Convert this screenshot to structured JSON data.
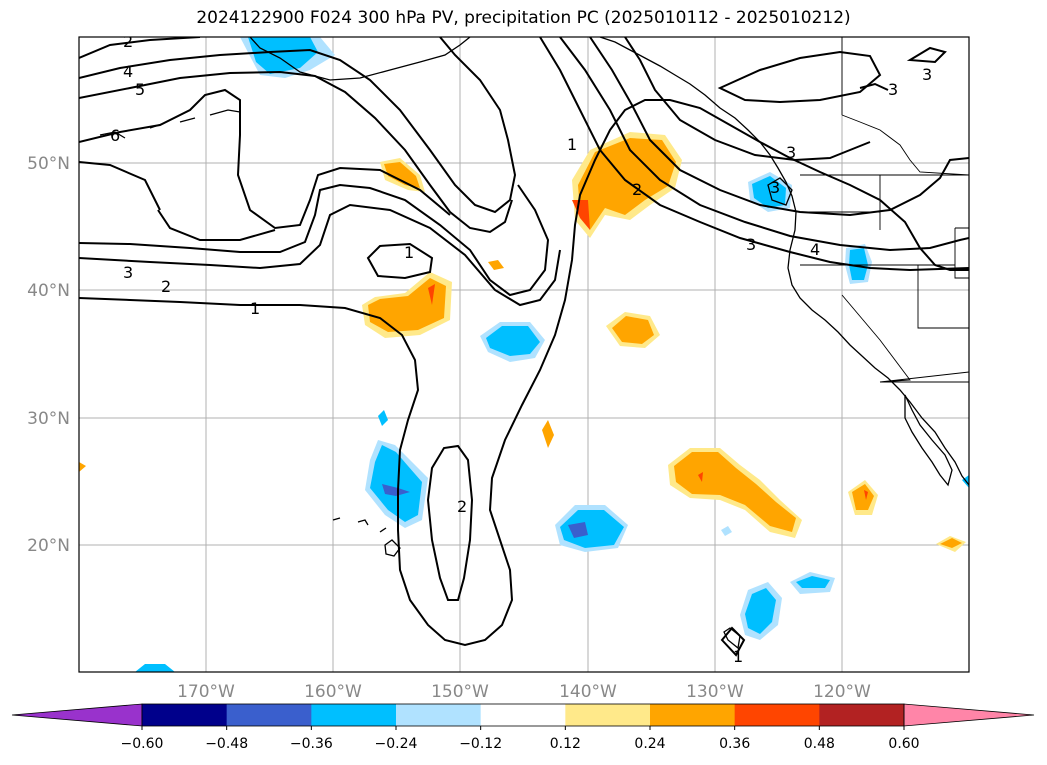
{
  "title": "2024122900 F024 300 hPa PV, precipitation PC (2025010112 - 2025010212)",
  "map": {
    "lat_ticks": [
      "50°N",
      "40°N",
      "30°N",
      "20°N"
    ],
    "lon_ticks": [
      "170°W",
      "160°W",
      "150°W",
      "140°W",
      "130°W",
      "120°W"
    ],
    "pv_contour_labels": [
      "2",
      "4",
      "5",
      "6",
      "3",
      "2",
      "1",
      "1",
      "2",
      "3",
      "1",
      "2",
      "3",
      "4",
      "3",
      "3",
      "3",
      "1"
    ],
    "colors": {
      "land_outline": "#000000",
      "grid": "#b0b0b0",
      "pv_contour": "#000000"
    }
  },
  "colorbar": {
    "labels": [
      "−0.60",
      "−0.48",
      "−0.36",
      "−0.24",
      "−0.12",
      "0.12",
      "0.24",
      "0.36",
      "0.48",
      "0.60"
    ],
    "colors": [
      "#9932cc",
      "#00008b",
      "#3a5fcd",
      "#00bfff",
      "#b0e2ff",
      "#ffffff",
      "#ffe98a",
      "#ffa500",
      "#ff4500",
      "#b22222",
      "#ff85a8"
    ]
  }
}
